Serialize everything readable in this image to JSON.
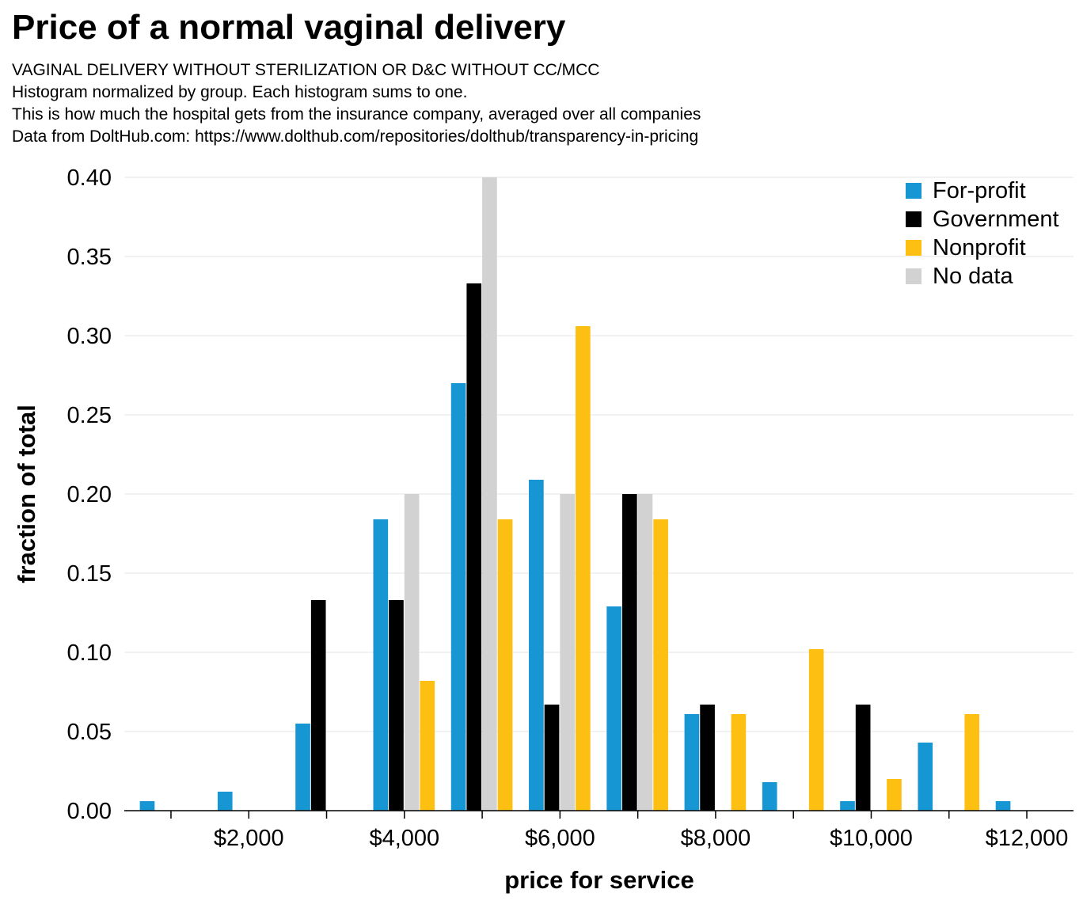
{
  "title": "Price of a normal vaginal delivery",
  "subtitles": [
    "VAGINAL DELIVERY WITHOUT STERILIZATION OR D&C WITHOUT CC/MCC",
    "Histogram normalized by group. Each histogram sums to one.",
    "This is how much the hospital gets from the insurance company, averaged over all companies",
    "Data from DoltHub.com: https://www.dolthub.com/repositories/dolthub/transparency-in-pricing"
  ],
  "chart_data": {
    "type": "bar",
    "title": "Price of a normal vaginal delivery",
    "xlabel": "price for service",
    "ylabel": "fraction of total",
    "categories": [
      1000,
      2000,
      3000,
      4000,
      5000,
      6000,
      7000,
      8000,
      9000,
      10000,
      11000,
      12000
    ],
    "bin_width": 1000,
    "xlim": [
      400,
      12600
    ],
    "ylim": [
      0,
      0.4
    ],
    "x_ticks": [
      2000,
      4000,
      6000,
      8000,
      10000,
      12000
    ],
    "x_tick_labels": [
      "$2,000",
      "$4,000",
      "$6,000",
      "$8,000",
      "$10,000",
      "$12,000"
    ],
    "y_ticks": [
      0,
      0.05,
      0.1,
      0.15,
      0.2,
      0.25,
      0.3,
      0.35,
      0.4
    ],
    "y_tick_labels": [
      "0.00",
      "0.05",
      "0.10",
      "0.15",
      "0.20",
      "0.25",
      "0.30",
      "0.35",
      "0.40"
    ],
    "grid": "horizontal",
    "legend_placement": "top-right",
    "series": [
      {
        "name": "For-profit",
        "color": "#1696d2",
        "values": [
          0.006,
          0.012,
          0.055,
          0.184,
          0.27,
          0.209,
          0.129,
          0.061,
          0.018,
          0.006,
          0.043,
          0.006
        ]
      },
      {
        "name": "Government",
        "color": "#000000",
        "values": [
          0,
          0,
          0.133,
          0.133,
          0.333,
          0.067,
          0.2,
          0.067,
          0,
          0.067,
          0,
          0
        ]
      },
      {
        "name": "No data",
        "color": "#d2d2d2",
        "values": [
          0,
          0,
          0,
          0.2,
          0.4,
          0.2,
          0.2,
          0,
          0,
          0,
          0,
          0
        ]
      },
      {
        "name": "Nonprofit",
        "color": "#fdbf11",
        "values": [
          0,
          0,
          0,
          0.082,
          0.184,
          0.306,
          0.184,
          0.061,
          0.102,
          0.02,
          0.061,
          0
        ]
      }
    ],
    "legend_order": [
      "For-profit",
      "Government",
      "Nonprofit",
      "No data"
    ]
  }
}
